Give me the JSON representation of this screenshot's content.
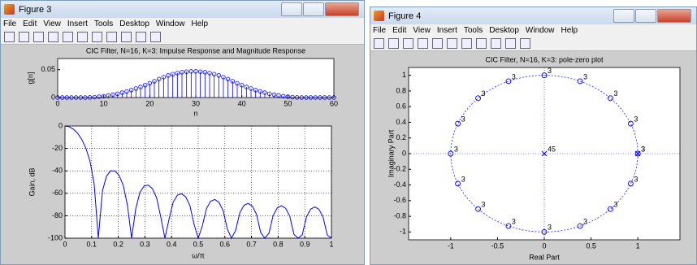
{
  "windows": [
    {
      "title": "Figure 3",
      "menu": [
        "File",
        "Edit",
        "View",
        "Insert",
        "Tools",
        "Desktop",
        "Window",
        "Help"
      ]
    },
    {
      "title": "Figure 4",
      "menu": [
        "File",
        "Edit",
        "View",
        "Insert",
        "Tools",
        "Desktop",
        "Window",
        "Help"
      ]
    }
  ],
  "chart_data": [
    {
      "type": "stem",
      "title": "CIC Filter, N=16, K=3: Impulse Response and Magnitude Response",
      "x_label": "n",
      "y_label": "g[n]",
      "color": "#0000ff",
      "x": [
        0,
        1,
        2,
        3,
        4,
        5,
        6,
        7,
        8,
        9,
        10,
        11,
        12,
        13,
        14,
        15,
        16,
        17,
        18,
        19,
        20,
        21,
        22,
        23,
        24,
        25,
        26,
        27,
        28,
        29,
        30,
        31,
        32,
        33,
        34,
        35,
        36,
        37,
        38,
        39,
        40,
        41,
        42,
        43,
        44,
        45,
        46,
        47,
        48,
        49,
        50,
        51,
        52,
        53,
        54,
        55,
        56,
        57,
        58,
        59,
        60
      ],
      "values": [
        0,
        0,
        0,
        0,
        0,
        0,
        0,
        0.0002,
        0.0007,
        0.0015,
        0.0024,
        0.0037,
        0.0051,
        0.0068,
        0.0088,
        0.011,
        0.0134,
        0.0161,
        0.019,
        0.0222,
        0.0256,
        0.0293,
        0.0332,
        0.0366,
        0.0396,
        0.042,
        0.0439,
        0.0454,
        0.0464,
        0.0469,
        0.0469,
        0.0464,
        0.0454,
        0.0439,
        0.042,
        0.0396,
        0.0366,
        0.0332,
        0.0293,
        0.0256,
        0.0222,
        0.019,
        0.0161,
        0.0134,
        0.011,
        0.0088,
        0.0068,
        0.0051,
        0.0037,
        0.0024,
        0.0015,
        0.0007,
        0.0002,
        0,
        0,
        0,
        0,
        0,
        0,
        0,
        0
      ],
      "xlim": [
        0,
        60
      ],
      "xticks": [
        0,
        10,
        20,
        30,
        40,
        50,
        60
      ],
      "ylim": [
        0,
        0.07
      ],
      "yticks": [
        0,
        0.05
      ],
      "grid": false
    },
    {
      "type": "line",
      "x_label": "ω/π",
      "y_label": "Gain, dB",
      "color": "#0000ff",
      "x": [
        0,
        0.015625,
        0.03125,
        0.046875,
        0.0625,
        0.078125,
        0.09375,
        0.109375,
        0.125,
        0.140625,
        0.15625,
        0.171875,
        0.1875,
        0.203125,
        0.21875,
        0.234375,
        0.25,
        0.265625,
        0.28125,
        0.296875,
        0.3125,
        0.328125,
        0.34375,
        0.359375,
        0.375,
        0.390625,
        0.40625,
        0.421875,
        0.4375,
        0.453125,
        0.46875,
        0.484375,
        0.5,
        0.515625,
        0.53125,
        0.546875,
        0.5625,
        0.578125,
        0.59375,
        0.609375,
        0.625,
        0.640625,
        0.65625,
        0.671875,
        0.6875,
        0.703125,
        0.71875,
        0.734375,
        0.75,
        0.765625,
        0.78125,
        0.796875,
        0.8125,
        0.828125,
        0.84375,
        0.859375,
        0.875,
        0.890625,
        0.90625,
        0.921875,
        0.9375,
        0.953125,
        0.96875,
        0.984375,
        1
      ],
      "values": [
        0,
        -0.67,
        -2.73,
        -6.31,
        -11.73,
        -19.58,
        -31.27,
        -51.25,
        -100,
        -57.72,
        -44.41,
        -39.87,
        -40.02,
        -44.1,
        -52.93,
        -70.65,
        -100,
        -73.74,
        -59.14,
        -53.48,
        -52.65,
        -55.87,
        -63.94,
        -80.98,
        -100,
        -82.89,
        -67.78,
        -61.65,
        -60.39,
        -63.21,
        -70.9,
        -87.59,
        -100,
        -88.87,
        -73.46,
        -67.06,
        -65.54,
        -68.11,
        -75.57,
        -92.03,
        -100,
        -92.88,
        -77.28,
        -70.69,
        -68.97,
        -71.37,
        -78.65,
        -94.94,
        -100,
        -95.46,
        -79.71,
        -72.96,
        -71.1,
        -73.35,
        -80.49,
        -96.64,
        -100,
        -96.89,
        -80.99,
        -74.11,
        -72.12,
        -74.24,
        -81.25,
        -97.27,
        -100
      ],
      "xlim": [
        0,
        1
      ],
      "xticks": [
        0,
        0.1,
        0.2,
        0.3,
        0.4,
        0.5,
        0.6,
        0.7,
        0.8,
        0.9,
        1
      ],
      "ylim": [
        -100,
        0
      ],
      "yticks": [
        -100,
        -80,
        -60,
        -40,
        -20,
        0
      ],
      "grid": true
    },
    {
      "type": "scatter",
      "title": "CIC Filter, N=16, K=3: pole-zero plot",
      "x_label": "Real Part",
      "y_label": "Imaginary Part",
      "unit_circle": true,
      "grid": false,
      "series": [
        {
          "marker": "circle",
          "color": "#0000ff",
          "x": [
            1,
            0.9239,
            0.7071,
            0.3827,
            0,
            -0.3827,
            -0.7071,
            -0.9239,
            -1,
            -0.9239,
            -0.7071,
            -0.3827,
            0,
            0.3827,
            0.7071,
            0.9239
          ],
          "values": [
            0,
            0.3827,
            0.7071,
            0.9239,
            1,
            0.9239,
            0.7071,
            0.3827,
            0,
            -0.3827,
            -0.7071,
            -0.9239,
            -1,
            -0.9239,
            -0.7071,
            -0.3827
          ],
          "multiplicity": [
            3,
            3,
            3,
            3,
            3,
            3,
            3,
            3,
            3,
            3,
            3,
            3,
            3,
            3,
            3,
            3
          ]
        },
        {
          "marker": "x",
          "color": "#0000ff",
          "x": [
            0,
            1
          ],
          "values": [
            0,
            0
          ],
          "multiplicity": [
            45,
            3
          ]
        }
      ],
      "xlim": [
        -1.45,
        1.45
      ],
      "xticks": [
        -1,
        -0.5,
        0,
        0.5,
        1
      ],
      "ylim": [
        -1.1,
        1.1
      ],
      "yticks": [
        -1,
        -0.8,
        -0.6,
        -0.4,
        -0.2,
        0,
        0.2,
        0.4,
        0.6,
        0.8,
        1
      ]
    }
  ]
}
